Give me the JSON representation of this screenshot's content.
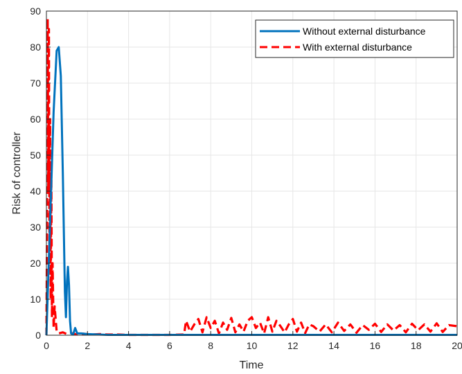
{
  "chart_data": {
    "type": "line",
    "title": "",
    "xlabel": "Time",
    "ylabel": "Risk of controller",
    "xlim": [
      0,
      20
    ],
    "ylim": [
      0,
      90
    ],
    "xticks": [
      0,
      2,
      4,
      6,
      8,
      10,
      12,
      14,
      16,
      18,
      20
    ],
    "yticks": [
      0,
      10,
      20,
      30,
      40,
      50,
      60,
      70,
      80,
      90
    ],
    "grid": true,
    "legend_position": "top-right",
    "series": [
      {
        "name": "Without external disturbance",
        "style": "solid",
        "color": "#0072BD",
        "x": [
          0,
          0.2,
          0.35,
          0.5,
          0.6,
          0.7,
          0.8,
          0.9,
          0.95,
          1.0,
          1.05,
          1.1,
          1.15,
          1.2,
          1.3,
          1.4,
          1.5,
          1.7,
          2.0,
          3,
          5,
          8,
          12,
          16,
          20
        ],
        "y": [
          0,
          35,
          62,
          79,
          80,
          72,
          45,
          12,
          5,
          15,
          19,
          14,
          4,
          0.5,
          0.2,
          2,
          0.5,
          0.5,
          0.3,
          0.1,
          0.1,
          0.1,
          0.1,
          0.1,
          0.1
        ]
      },
      {
        "name": "With external disturbance",
        "style": "dashed",
        "color": "#FF0000",
        "x": [
          0,
          0.03,
          0.06,
          0.09,
          0.12,
          0.15,
          0.18,
          0.21,
          0.24,
          0.27,
          0.3,
          0.35,
          0.4,
          0.5,
          0.6,
          0.8,
          1.0,
          1.2,
          1.5,
          1.8,
          2.2,
          2.6,
          3.0,
          3.5,
          4.0,
          5.0,
          6.0,
          6.7,
          6.8,
          7.0,
          7.2,
          7.4,
          7.6,
          7.8,
          8.0,
          8.2,
          8.4,
          8.6,
          8.8,
          9.0,
          9.2,
          9.4,
          9.6,
          9.8,
          10.0,
          10.2,
          10.4,
          10.6,
          10.8,
          11.0,
          11.2,
          11.4,
          11.6,
          11.8,
          12.0,
          12.2,
          12.4,
          12.6,
          12.8,
          13.0,
          13.3,
          13.6,
          13.9,
          14.2,
          14.5,
          14.8,
          15.1,
          15.4,
          15.7,
          16.0,
          16.3,
          16.6,
          16.9,
          17.2,
          17.5,
          17.8,
          18.1,
          18.4,
          18.7,
          19.0,
          19.3,
          19.6,
          20.0
        ],
        "y": [
          0,
          30,
          88,
          40,
          85,
          25,
          60,
          10,
          45,
          5,
          20,
          2,
          8,
          1,
          0.5,
          0.8,
          0.3,
          0.6,
          0.2,
          0.4,
          0.2,
          0.3,
          0.2,
          0.2,
          0.1,
          0.1,
          0.1,
          0.2,
          4,
          1,
          3,
          4.5,
          0.8,
          5,
          2,
          4,
          0.5,
          3.5,
          1.5,
          4.8,
          0.8,
          3,
          1,
          4,
          5,
          2,
          3.5,
          0.5,
          5,
          1,
          4,
          2.5,
          0.8,
          3,
          4.5,
          1,
          3.5,
          0.6,
          3,
          2.5,
          1,
          3,
          0.8,
          3.5,
          1.2,
          3,
          0.7,
          2.8,
          1.5,
          3.2,
          0.9,
          3,
          1.3,
          2.8,
          0.8,
          3.2,
          1.4,
          3,
          1,
          3.3,
          0.9,
          2.8,
          2.5
        ]
      }
    ]
  }
}
